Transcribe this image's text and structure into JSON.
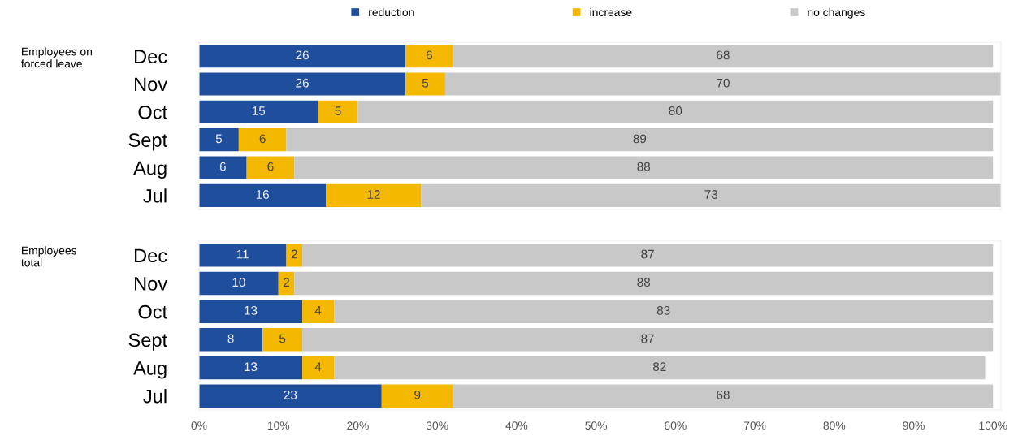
{
  "chart_data": [
    {
      "type": "bar",
      "title": "Employees on forced leave",
      "orientation": "horizontal",
      "stacked": true,
      "categories": [
        "Dec",
        "Nov",
        "Oct",
        "Sept",
        "Aug",
        "Jul"
      ],
      "series": [
        {
          "name": "reduction",
          "color": "#1f4e9c",
          "values": [
            26,
            26,
            15,
            5,
            6,
            16
          ]
        },
        {
          "name": "increase",
          "color": "#f5b800",
          "values": [
            6,
            5,
            5,
            6,
            6,
            12
          ]
        },
        {
          "name": "no changes",
          "color": "#c8c8c8",
          "values": [
            68,
            70,
            80,
            89,
            88,
            73
          ]
        }
      ],
      "xlim": [
        0,
        101
      ],
      "tick_labels": "y",
      "data_labels": true,
      "grid": false,
      "legend": "top"
    },
    {
      "type": "bar",
      "title": "Employees total",
      "orientation": "horizontal",
      "stacked": true,
      "categories": [
        "Dec",
        "Nov",
        "Oct",
        "Sept",
        "Aug",
        "Jul"
      ],
      "series": [
        {
          "color": "#1f4e9c",
          "values": [
            11,
            10,
            13,
            8,
            13,
            23
          ]
        },
        {
          "color": "#f5b800",
          "values": [
            2,
            2,
            4,
            5,
            4,
            9
          ]
        },
        {
          "color": "#c8c8c8",
          "values": [
            87,
            88,
            83,
            87,
            82,
            68
          ]
        }
      ],
      "xlim": [
        0,
        101
      ],
      "xticks": [
        {
          "value": 0,
          "label": "0%"
        },
        {
          "value": 10,
          "label": "10%"
        },
        {
          "value": 20,
          "label": "20%"
        },
        {
          "value": 30,
          "label": "30%"
        },
        {
          "value": 40,
          "label": "40%"
        },
        {
          "value": 50,
          "label": "50%"
        },
        {
          "value": 60,
          "label": "60%"
        },
        {
          "value": 70,
          "label": "70%"
        },
        {
          "value": 80,
          "label": "80%"
        },
        {
          "value": 90,
          "label": "90%"
        },
        {
          "value": 100,
          "label": "100%"
        }
      ],
      "data_labels": true,
      "grid": false
    }
  ]
}
